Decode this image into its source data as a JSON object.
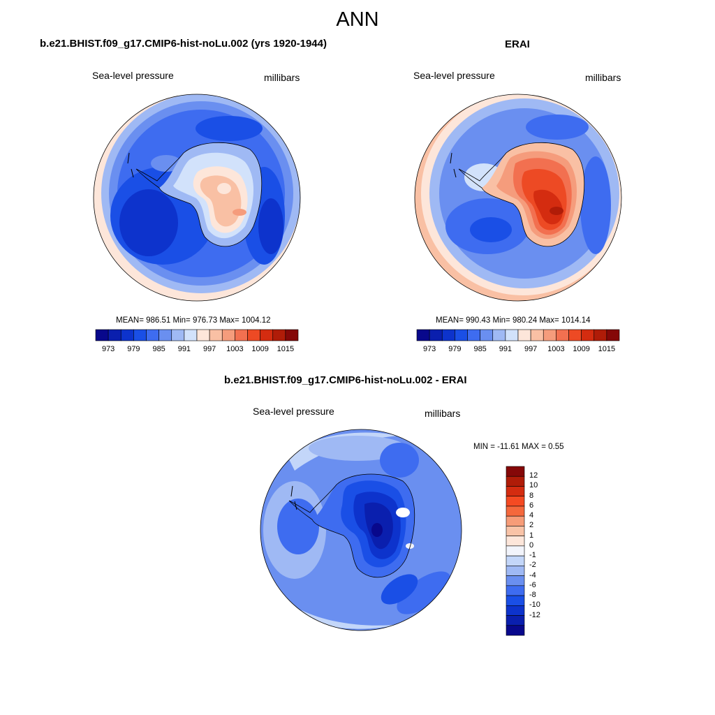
{
  "title": "ANN",
  "panels": [
    {
      "title": "b.e21.BHIST.f09_g17.CMIP6-hist-noLu.002 (yrs 1920-1944)",
      "variable": "Sea-level pressure",
      "units": "millibars",
      "stats": "MEAN= 986.51  Min= 976.73  Max= 1004.12"
    },
    {
      "title": "ERAI",
      "variable": "Sea-level pressure",
      "units": "millibars",
      "stats": "MEAN= 990.43  Min= 980.24  Max= 1014.14"
    },
    {
      "title": "b.e21.BHIST.f09_g17.CMIP6-hist-noLu.002 - ERAI",
      "variable": "Sea-level pressure",
      "units": "millibars",
      "stats": "MIN = -11.61 MAX =   0.55"
    }
  ],
  "colorbar_abs": {
    "colors": [
      "#08088c",
      "#0a1fae",
      "#0d33cc",
      "#1a4fe6",
      "#3e6cf0",
      "#6a8ff0",
      "#9fb9f4",
      "#d2e2fb",
      "#fde6da",
      "#f9c0a4",
      "#f59c7c",
      "#f27050",
      "#ed4a24",
      "#d42c10",
      "#b01c08",
      "#850808"
    ],
    "tick_labels": [
      "973",
      "979",
      "985",
      "991",
      "997",
      "1003",
      "1009",
      "1015"
    ]
  },
  "colorbar_diff": {
    "colors": [
      "#850808",
      "#b01c08",
      "#d42c10",
      "#f54a22",
      "#f5683c",
      "#f79c78",
      "#f9c3a7",
      "#fde6da",
      "#f2f4fb",
      "#c3d6f9",
      "#9fb9f4",
      "#6a8ff0",
      "#3e6cf0",
      "#1a4fe6",
      "#0d33cc",
      "#0a1fae",
      "#08088c"
    ],
    "tick_labels": [
      "12",
      "10",
      "8",
      "6",
      "4",
      "2",
      "1",
      "0",
      "-1",
      "-2",
      "-4",
      "-6",
      "-8",
      "-10",
      "-12"
    ]
  }
}
